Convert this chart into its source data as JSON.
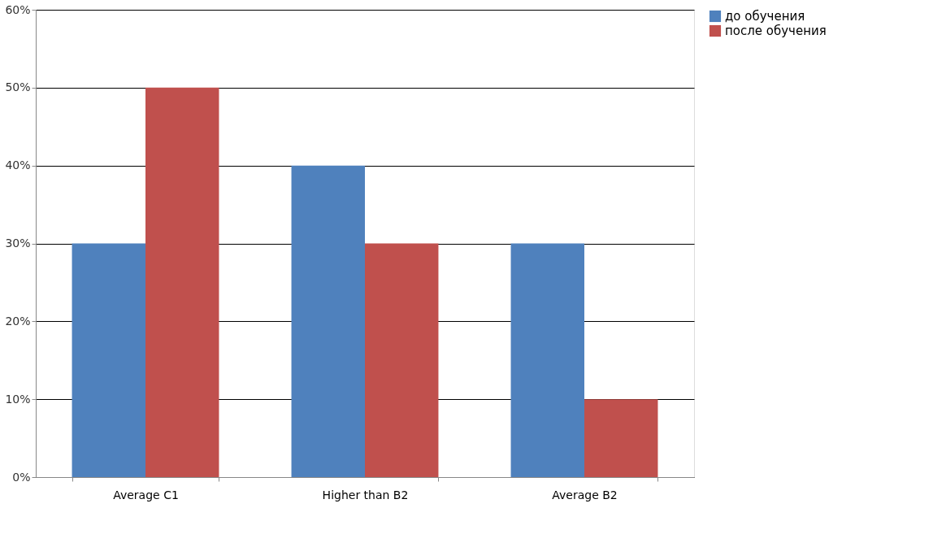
{
  "chart_data": {
    "type": "bar",
    "categories": [
      "Average C1",
      "Higher than B2",
      "Average B2"
    ],
    "series": [
      {
        "name": "до обучения",
        "color": "#4f81bd",
        "values": [
          30,
          40,
          30
        ]
      },
      {
        "name": "после обучения",
        "color": "#c0504d",
        "values": [
          50,
          30,
          10
        ]
      }
    ],
    "ylim": [
      0,
      60
    ],
    "yticks": [
      {
        "value": 0,
        "label": "0%"
      },
      {
        "value": 10,
        "label": "10%"
      },
      {
        "value": 20,
        "label": "20%"
      },
      {
        "value": 30,
        "label": "30%"
      },
      {
        "value": 40,
        "label": "40%"
      },
      {
        "value": 50,
        "label": "50%"
      },
      {
        "value": 60,
        "label": "60%"
      }
    ],
    "grid": "y",
    "legend": "right"
  }
}
